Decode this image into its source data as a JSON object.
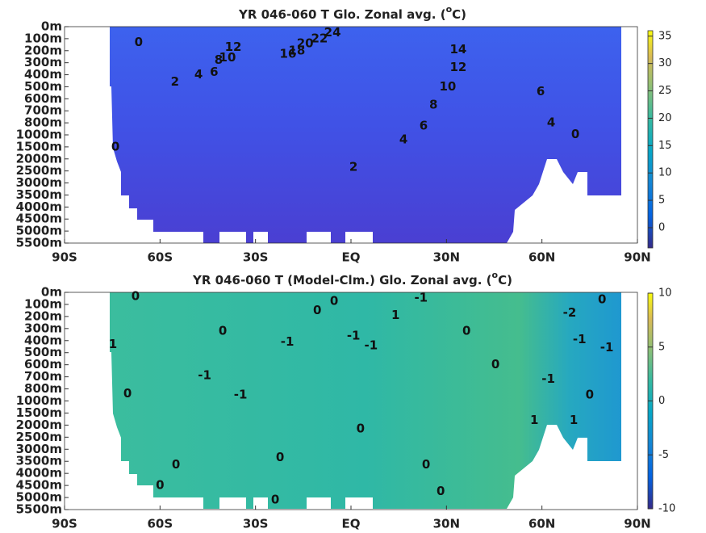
{
  "chart_data": [
    {
      "type": "heatmap",
      "title": "YR 046-060 T Glo. Zonal avg. (",
      "title_sup": "o",
      "title_end": "C)",
      "xlim": [
        -90,
        90
      ],
      "xticks": [
        {
          "value": -90,
          "label": "90S"
        },
        {
          "value": -60,
          "label": "60S"
        },
        {
          "value": -30,
          "label": "30S"
        },
        {
          "value": 0,
          "label": "EQ"
        },
        {
          "value": 30,
          "label": "30N"
        },
        {
          "value": 60,
          "label": "60N"
        },
        {
          "value": 90,
          "label": "90N"
        }
      ],
      "ylim": [
        0,
        5500
      ],
      "yticks": [
        {
          "value": 0,
          "label": "0m"
        },
        {
          "value": 100,
          "label": "100m"
        },
        {
          "value": 200,
          "label": "200m"
        },
        {
          "value": 300,
          "label": "300m"
        },
        {
          "value": 400,
          "label": "400m"
        },
        {
          "value": 500,
          "label": "500m"
        },
        {
          "value": 600,
          "label": "600m"
        },
        {
          "value": 700,
          "label": "700m"
        },
        {
          "value": 800,
          "label": "800m"
        },
        {
          "value": 1000,
          "label": "1000m"
        },
        {
          "value": 1500,
          "label": "1500m"
        },
        {
          "value": 2000,
          "label": "2000m"
        },
        {
          "value": 2500,
          "label": "2500m"
        },
        {
          "value": 3000,
          "label": "3000m"
        },
        {
          "value": 3500,
          "label": "3500m"
        },
        {
          "value": 4000,
          "label": "4000m"
        },
        {
          "value": 4500,
          "label": "4500m"
        },
        {
          "value": 5000,
          "label": "5000m"
        },
        {
          "value": 5500,
          "label": "5500m"
        }
      ],
      "clim": [
        -3.7,
        36
      ],
      "cticks": [
        35,
        30,
        25,
        20,
        15,
        10,
        5,
        0
      ],
      "contour_labels": [
        {
          "value": 0,
          "lat": -66.7,
          "depth": 130
        },
        {
          "value": 2,
          "lat": -55.3,
          "depth": 460
        },
        {
          "value": 4,
          "lat": -47.9,
          "depth": 400
        },
        {
          "value": 6,
          "lat": -43,
          "depth": 380
        },
        {
          "value": 8,
          "lat": -41.6,
          "depth": 280
        },
        {
          "value": 10,
          "lat": -38.8,
          "depth": 260
        },
        {
          "value": 12,
          "lat": -37,
          "depth": 170
        },
        {
          "value": 0,
          "lat": -74,
          "depth": 1500
        },
        {
          "value": 2,
          "lat": 0.8,
          "depth": 2350
        },
        {
          "value": 4,
          "lat": 16.5,
          "depth": 1200
        },
        {
          "value": 6,
          "lat": 22.8,
          "depth": 850
        },
        {
          "value": 8,
          "lat": 25.9,
          "depth": 650
        },
        {
          "value": 10,
          "lat": 30.4,
          "depth": 500
        },
        {
          "value": 12,
          "lat": 33.7,
          "depth": 340
        },
        {
          "value": 14,
          "lat": 33.7,
          "depth": 190
        },
        {
          "value": 16,
          "lat": -19.8,
          "depth": 230
        },
        {
          "value": 18,
          "lat": -17,
          "depth": 200
        },
        {
          "value": 20,
          "lat": -14.4,
          "depth": 140
        },
        {
          "value": 22,
          "lat": -9.9,
          "depth": 100
        },
        {
          "value": 24,
          "lat": -5.8,
          "depth": 50
        },
        {
          "value": 6,
          "lat": 59.6,
          "depth": 540
        },
        {
          "value": 4,
          "lat": 62.9,
          "depth": 800
        },
        {
          "value": 0,
          "lat": 70.5,
          "depth": 990
        }
      ]
    },
    {
      "type": "heatmap",
      "title": "YR 046-060 T (Model-Clm.) Glo. Zonal avg. (",
      "title_sup": "o",
      "title_end": "C)",
      "xlim": [
        -90,
        90
      ],
      "xticks": [
        {
          "value": -90,
          "label": "90S"
        },
        {
          "value": -60,
          "label": "60S"
        },
        {
          "value": -30,
          "label": "30S"
        },
        {
          "value": 0,
          "label": "EQ"
        },
        {
          "value": 30,
          "label": "30N"
        },
        {
          "value": 60,
          "label": "60N"
        },
        {
          "value": 90,
          "label": "90N"
        }
      ],
      "ylim": [
        0,
        5500
      ],
      "yticks": [
        {
          "value": 0,
          "label": "0m"
        },
        {
          "value": 100,
          "label": "100m"
        },
        {
          "value": 200,
          "label": "200m"
        },
        {
          "value": 300,
          "label": "300m"
        },
        {
          "value": 400,
          "label": "400m"
        },
        {
          "value": 500,
          "label": "500m"
        },
        {
          "value": 600,
          "label": "600m"
        },
        {
          "value": 700,
          "label": "700m"
        },
        {
          "value": 800,
          "label": "800m"
        },
        {
          "value": 1000,
          "label": "1000m"
        },
        {
          "value": 1500,
          "label": "1500m"
        },
        {
          "value": 2000,
          "label": "2000m"
        },
        {
          "value": 2500,
          "label": "2500m"
        },
        {
          "value": 3000,
          "label": "3000m"
        },
        {
          "value": 3500,
          "label": "3500m"
        },
        {
          "value": 4000,
          "label": "4000m"
        },
        {
          "value": 4500,
          "label": "4500m"
        },
        {
          "value": 5000,
          "label": "5000m"
        },
        {
          "value": 5500,
          "label": "5500m"
        }
      ],
      "clim": [
        -10,
        10
      ],
      "cticks": [
        10,
        5,
        0,
        -5,
        -10
      ],
      "contour_labels": [
        {
          "value": 0,
          "lat": -67.7,
          "depth": 33
        },
        {
          "value": 0,
          "lat": -5.3,
          "depth": 74
        },
        {
          "value": -1,
          "lat": 22,
          "depth": 47
        },
        {
          "value": 1,
          "lat": 14,
          "depth": 190
        },
        {
          "value": 0,
          "lat": -10.6,
          "depth": 150
        },
        {
          "value": 0,
          "lat": -40.3,
          "depth": 320
        },
        {
          "value": -1,
          "lat": -20,
          "depth": 410
        },
        {
          "value": -1,
          "lat": 0.8,
          "depth": 360
        },
        {
          "value": -1,
          "lat": 6.3,
          "depth": 440
        },
        {
          "value": 0,
          "lat": 36.3,
          "depth": 320
        },
        {
          "value": 0,
          "lat": 45.4,
          "depth": 600
        },
        {
          "value": 1,
          "lat": -74.8,
          "depth": 430
        },
        {
          "value": -1,
          "lat": -46,
          "depth": 690
        },
        {
          "value": -1,
          "lat": -34.7,
          "depth": 900
        },
        {
          "value": 0,
          "lat": -70.2,
          "depth": 880
        },
        {
          "value": -1,
          "lat": 62,
          "depth": 720
        },
        {
          "value": 0,
          "lat": 75,
          "depth": 900
        },
        {
          "value": 1,
          "lat": 57.6,
          "depth": 1800
        },
        {
          "value": 1,
          "lat": 70,
          "depth": 1800
        },
        {
          "value": -2,
          "lat": 68.7,
          "depth": 170
        },
        {
          "value": 0,
          "lat": 78.9,
          "depth": 60
        },
        {
          "value": -1,
          "lat": 71.8,
          "depth": 390
        },
        {
          "value": -1,
          "lat": 80.4,
          "depth": 460
        },
        {
          "value": 0,
          "lat": 3,
          "depth": 2150
        },
        {
          "value": 0,
          "lat": -55,
          "depth": 3650
        },
        {
          "value": 0,
          "lat": -22.3,
          "depth": 3350
        },
        {
          "value": 0,
          "lat": 23.6,
          "depth": 3650
        },
        {
          "value": 0,
          "lat": -60,
          "depth": 4500
        },
        {
          "value": 0,
          "lat": -23.8,
          "depth": 5100
        },
        {
          "value": 0,
          "lat": 28.2,
          "depth": 4750
        }
      ]
    }
  ]
}
